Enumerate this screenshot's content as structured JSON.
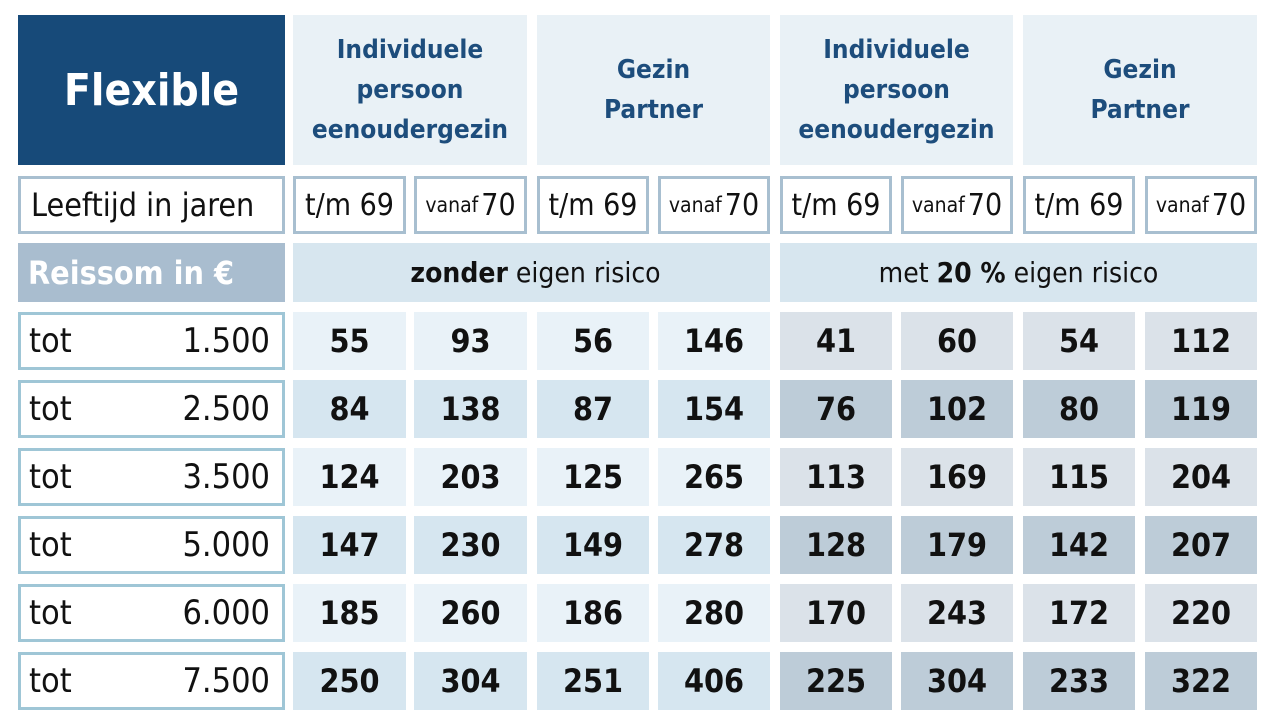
{
  "title": "Flexible",
  "groups": [
    "Individuele persoon eenoudergezin",
    "Gezin Partner",
    "Individuele persoon eenoudergezin",
    "Gezin Partner"
  ],
  "age_label": "Leeftijd in jaren",
  "ages": [
    {
      "prefix": "t/m",
      "value": "69"
    },
    {
      "prefix": "vanaf",
      "value": "70"
    },
    {
      "prefix": "t/m",
      "value": "69"
    },
    {
      "prefix": "vanaf",
      "value": "70"
    },
    {
      "prefix": "t/m",
      "value": "69"
    },
    {
      "prefix": "vanaf",
      "value": "70"
    },
    {
      "prefix": "t/m",
      "value": "69"
    },
    {
      "prefix": "vanaf",
      "value": "70"
    }
  ],
  "sum_label": "Reissom in €",
  "bands": [
    {
      "pre": "",
      "bold": "zonder",
      "post": "eigen risico"
    },
    {
      "pre": "met",
      "bold": "20 %",
      "post": "eigen risico"
    }
  ],
  "rows": [
    {
      "prefix": "tot",
      "amount": "1.500",
      "values": [
        "55",
        "93",
        "56",
        "146",
        "41",
        "60",
        "54",
        "112"
      ]
    },
    {
      "prefix": "tot",
      "amount": "2.500",
      "values": [
        "84",
        "138",
        "87",
        "154",
        "76",
        "102",
        "80",
        "119"
      ]
    },
    {
      "prefix": "tot",
      "amount": "3.500",
      "values": [
        "124",
        "203",
        "125",
        "265",
        "113",
        "169",
        "115",
        "204"
      ]
    },
    {
      "prefix": "tot",
      "amount": "5.000",
      "values": [
        "147",
        "230",
        "149",
        "278",
        "128",
        "179",
        "142",
        "207"
      ]
    },
    {
      "prefix": "tot",
      "amount": "6.000",
      "values": [
        "185",
        "260",
        "186",
        "280",
        "170",
        "243",
        "172",
        "220"
      ]
    },
    {
      "prefix": "tot",
      "amount": "7.500",
      "values": [
        "250",
        "304",
        "251",
        "406",
        "225",
        "304",
        "233",
        "322"
      ]
    }
  ],
  "colors": {
    "brand": "#174a79",
    "header_text": "#1d4d7c",
    "left_light": "#e9f2f8",
    "left_dark": "#d6e6f0",
    "right_light": "#dbe2e9",
    "right_dark": "#bdccd8"
  }
}
